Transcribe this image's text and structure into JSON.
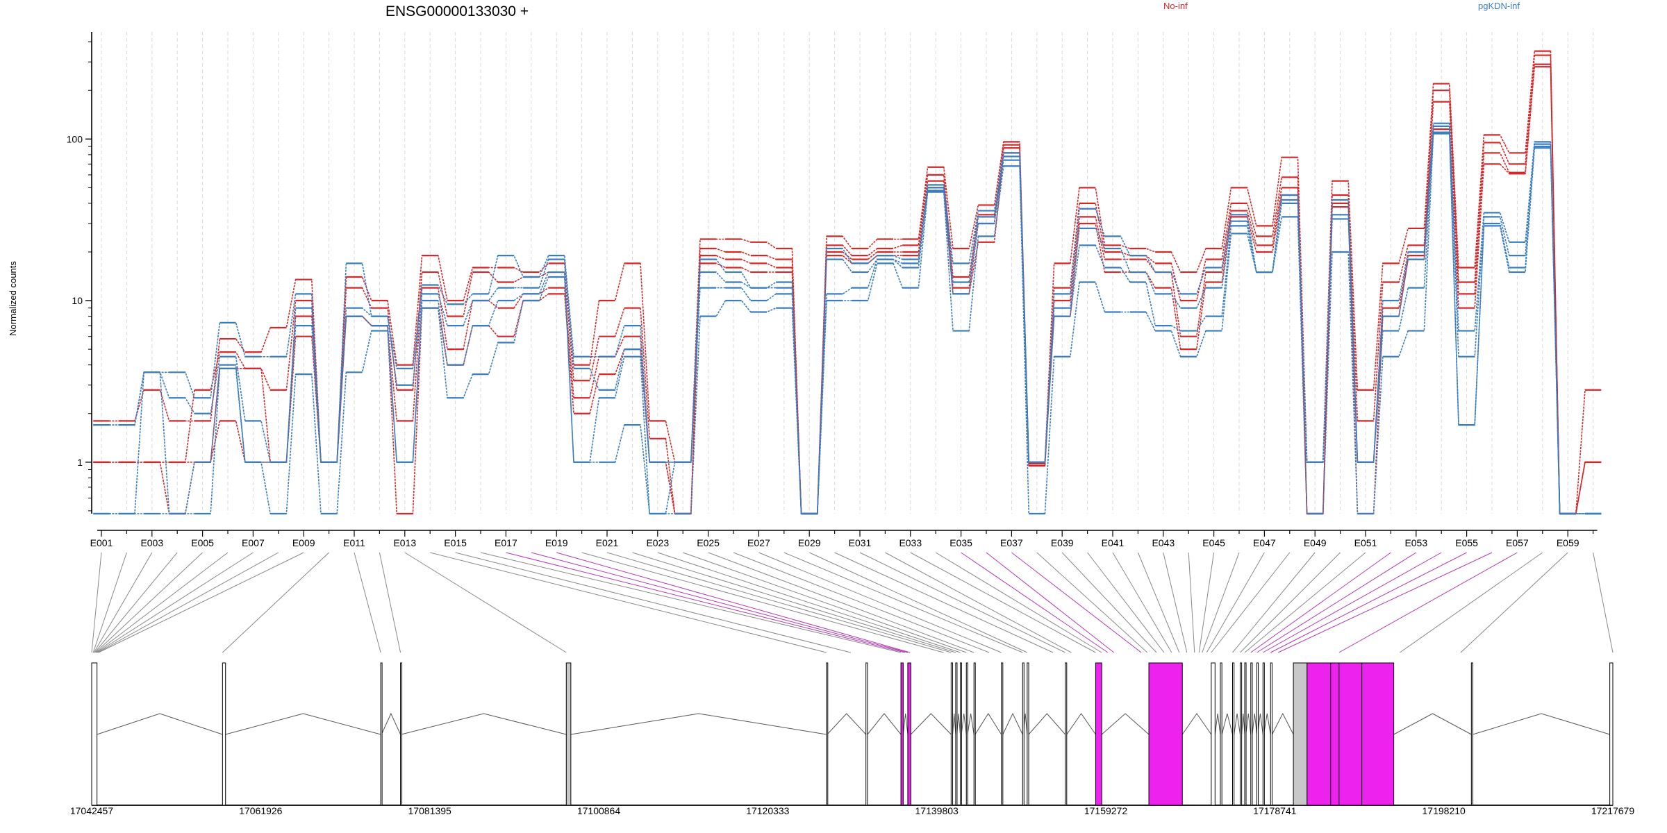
{
  "chart_data": {
    "type": "line",
    "title": "ENSG00000133030 +",
    "xlabel": "",
    "ylabel": "Normalized counts",
    "y_scale": "log",
    "ylim": [
      0.48,
      460
    ],
    "y_ticks": [
      1,
      10,
      100
    ],
    "y_tick_labels": [
      "1",
      "10",
      "100"
    ],
    "grid": "vertical dashed lines at each exon",
    "legend": [
      {
        "name": "No-inf",
        "color": "#d62728"
      },
      {
        "name": "pgKDN-inf",
        "color": "#3a7dbf"
      }
    ],
    "legend_placement": "top-right, horizontal",
    "categories": [
      "E001",
      "E002",
      "E003",
      "E004",
      "E005",
      "E006",
      "E007",
      "E008",
      "E009",
      "E010",
      "E011",
      "E012",
      "E013",
      "E014",
      "E015",
      "E016",
      "E017",
      "E018",
      "E019",
      "E020",
      "E021",
      "E022",
      "E023",
      "E024",
      "E025",
      "E026",
      "E027",
      "E028",
      "E029",
      "E030",
      "E031",
      "E032",
      "E033",
      "E034",
      "E035",
      "E036",
      "E037",
      "E038",
      "E039",
      "E040",
      "E041",
      "E042",
      "E043",
      "E044",
      "E045",
      "E046",
      "E047",
      "E048",
      "E049",
      "E050",
      "E051",
      "E052",
      "E053",
      "E054",
      "E055",
      "E056",
      "E057",
      "E058",
      "E059",
      "E060"
    ],
    "x_tick_labels": [
      "E001",
      "E003",
      "E005",
      "E007",
      "E009",
      "E011",
      "E013",
      "E015",
      "E017",
      "E019",
      "E021",
      "E023",
      "E025",
      "E027",
      "E029",
      "E031",
      "E033",
      "E035",
      "E037",
      "E039",
      "E041",
      "E043",
      "E045",
      "E047",
      "E049",
      "E051",
      "E053",
      "E055",
      "E057",
      "E059"
    ],
    "series": [
      {
        "name": "No-inf",
        "color": "#d62728",
        "values": [
          1.8,
          1.8,
          2.8,
          1.8,
          1.8,
          5.8,
          4.8,
          6.8,
          13.5,
          1.0,
          14.0,
          10.0,
          4.0,
          19.0,
          10.0,
          16.0,
          16.0,
          15.0,
          17.0,
          4.0,
          10.0,
          17.0,
          1.8,
          1.0,
          24.0,
          24.0,
          23.0,
          21.0,
          0.48,
          25.0,
          21.0,
          24.0,
          24.0,
          67.0,
          21.0,
          39.0,
          96.0,
          1.0,
          17.0,
          50.0,
          22.0,
          21.0,
          20.0,
          15.0,
          21.0,
          50.0,
          29.0,
          77.0,
          1.0,
          55.0,
          2.8,
          17.0,
          28.0,
          220.0,
          16.0,
          106.0,
          82.0,
          350.0,
          0.48,
          2.8
        ]
      },
      {
        "name": "No-inf",
        "color": "#d62728",
        "values": [
          1.0,
          1.0,
          1.0,
          1.0,
          2.8,
          4.8,
          3.8,
          2.8,
          10.0,
          1.0,
          12.0,
          9.0,
          2.8,
          15.0,
          8.0,
          15.0,
          13.0,
          14.0,
          15.0,
          3.2,
          6.0,
          9.0,
          1.4,
          0.48,
          21.0,
          20.0,
          19.0,
          18.0,
          0.48,
          22.0,
          19.0,
          21.0,
          22.0,
          60.0,
          14.0,
          34.0,
          92.0,
          0.98,
          12.0,
          40.0,
          20.0,
          19.0,
          17.0,
          10.0,
          18.0,
          40.0,
          25.0,
          58.0,
          0.48,
          45.0,
          1.8,
          13.0,
          22.0,
          200.0,
          13.0,
          95.0,
          70.0,
          330.0,
          0.48,
          1.0
        ]
      },
      {
        "name": "No-inf",
        "color": "#d62728",
        "values": [
          1.0,
          1.0,
          1.0,
          1.0,
          1.0,
          3.8,
          3.8,
          1.0,
          8.0,
          1.0,
          8.0,
          7.0,
          1.8,
          12.0,
          5.0,
          10.0,
          9.0,
          11.0,
          12.0,
          2.5,
          4.5,
          6.0,
          1.0,
          0.48,
          19.0,
          18.0,
          17.0,
          16.0,
          0.48,
          20.0,
          18.0,
          20.0,
          20.0,
          55.0,
          12.0,
          30.0,
          88.0,
          0.95,
          10.0,
          33.0,
          18.0,
          18.0,
          15.0,
          6.0,
          15.0,
          36.0,
          22.0,
          50.0,
          0.48,
          40.0,
          1.0,
          9.0,
          19.0,
          170.0,
          11.0,
          82.0,
          62.0,
          290.0,
          0.48,
          1.0
        ]
      },
      {
        "name": "No-inf",
        "color": "#d62728",
        "values": [
          1.0,
          1.0,
          1.0,
          0.48,
          1.0,
          1.8,
          1.0,
          1.0,
          6.0,
          1.0,
          8.0,
          7.0,
          0.48,
          9.0,
          4.0,
          7.0,
          6.0,
          10.0,
          11.0,
          2.0,
          3.5,
          5.0,
          1.0,
          0.48,
          17.0,
          16.0,
          15.0,
          15.0,
          0.48,
          19.0,
          17.0,
          19.0,
          19.0,
          50.0,
          11.0,
          23.0,
          82.0,
          0.95,
          8.0,
          30.0,
          15.0,
          15.0,
          12.0,
          5.0,
          13.0,
          33.0,
          20.0,
          45.0,
          0.48,
          38.0,
          0.48,
          8.0,
          18.0,
          115.0,
          9.0,
          70.0,
          61.0,
          280.0,
          0.48,
          1.0
        ]
      },
      {
        "name": "pgKDN-inf",
        "color": "#3a7dbf",
        "values": [
          1.7,
          1.7,
          3.6,
          3.6,
          2.5,
          7.3,
          4.5,
          4.5,
          11.0,
          1.0,
          17.0,
          8.0,
          3.8,
          12.5,
          9.5,
          11.0,
          19.0,
          14.0,
          19.0,
          4.5,
          4.5,
          7.0,
          1.0,
          1.0,
          18.0,
          15.0,
          12.0,
          13.0,
          0.48,
          21.0,
          17.0,
          19.0,
          18.0,
          52.0,
          17.0,
          36.0,
          82.0,
          1.0,
          11.0,
          37.0,
          25.0,
          19.0,
          15.0,
          11.0,
          16.0,
          34.0,
          15.0,
          45.0,
          1.0,
          42.0,
          1.0,
          10.0,
          20.0,
          125.0,
          6.5,
          35.0,
          23.0,
          96.0,
          0.48,
          0.48
        ]
      },
      {
        "name": "pgKDN-inf",
        "color": "#3a7dbf",
        "values": [
          1.7,
          1.7,
          3.6,
          2.5,
          2.0,
          4.5,
          1.8,
          1.0,
          9.0,
          1.0,
          9.0,
          8.0,
          3.0,
          11.0,
          7.0,
          10.0,
          12.0,
          12.0,
          18.0,
          3.8,
          2.8,
          5.0,
          1.0,
          1.0,
          15.0,
          13.0,
          12.0,
          12.0,
          0.48,
          18.0,
          15.0,
          18.0,
          17.0,
          50.0,
          13.0,
          33.0,
          78.0,
          1.0,
          9.0,
          28.0,
          21.0,
          15.0,
          11.0,
          9.0,
          12.0,
          31.0,
          15.0,
          42.0,
          1.0,
          34.0,
          1.0,
          8.0,
          18.0,
          120.0,
          4.5,
          33.0,
          19.0,
          93.0,
          0.48,
          0.48
        ]
      },
      {
        "name": "pgKDN-inf",
        "color": "#3a7dbf",
        "values": [
          0.48,
          0.48,
          3.6,
          0.48,
          1.0,
          4.0,
          1.0,
          1.0,
          7.0,
          1.0,
          8.0,
          7.0,
          1.0,
          10.0,
          4.0,
          7.0,
          10.0,
          11.0,
          15.0,
          1.0,
          2.5,
          4.5,
          0.48,
          1.0,
          12.0,
          12.0,
          10.0,
          11.0,
          0.48,
          11.0,
          12.0,
          18.0,
          16.0,
          48.0,
          11.0,
          30.0,
          74.0,
          1.0,
          8.0,
          22.0,
          16.0,
          13.0,
          7.0,
          6.5,
          8.0,
          29.0,
          15.0,
          40.0,
          1.0,
          32.0,
          1.0,
          6.5,
          12.0,
          110.0,
          1.7,
          30.0,
          16.0,
          90.0,
          0.48,
          0.48
        ]
      },
      {
        "name": "pgKDN-inf",
        "color": "#3a7dbf",
        "values": [
          0.48,
          0.48,
          0.48,
          0.48,
          0.48,
          3.8,
          1.0,
          0.48,
          3.5,
          0.48,
          3.6,
          6.5,
          1.0,
          9.0,
          2.5,
          3.5,
          5.5,
          10.0,
          14.0,
          1.0,
          1.0,
          1.7,
          0.48,
          0.48,
          8.0,
          10.0,
          8.5,
          9.0,
          0.48,
          10.0,
          10.0,
          17.0,
          12.0,
          47.0,
          6.5,
          25.0,
          68.0,
          0.48,
          4.5,
          13.0,
          8.5,
          8.5,
          6.5,
          4.5,
          6.5,
          26.0,
          15.0,
          33.0,
          0.48,
          20.0,
          0.48,
          4.5,
          6.5,
          108.0,
          1.7,
          29.0,
          15.0,
          88.0,
          0.48,
          0.48
        ]
      }
    ],
    "gene_model": {
      "genomic_ticks": [
        "17042457",
        "17061926",
        "17081395",
        "17100864",
        "17120333",
        "17139803",
        "17159272",
        "17178741",
        "17198210",
        "17217679"
      ],
      "highlight_color": "#ee22ee",
      "exon_fill_color": "#ffffff",
      "grey_exon_color": "#c8c8c8",
      "highlighted_exons": [
        "E017",
        "E018",
        "E019",
        "E035",
        "E036",
        "E037",
        "E052",
        "E053",
        "E054",
        "E055",
        "E056",
        "E057"
      ]
    }
  }
}
